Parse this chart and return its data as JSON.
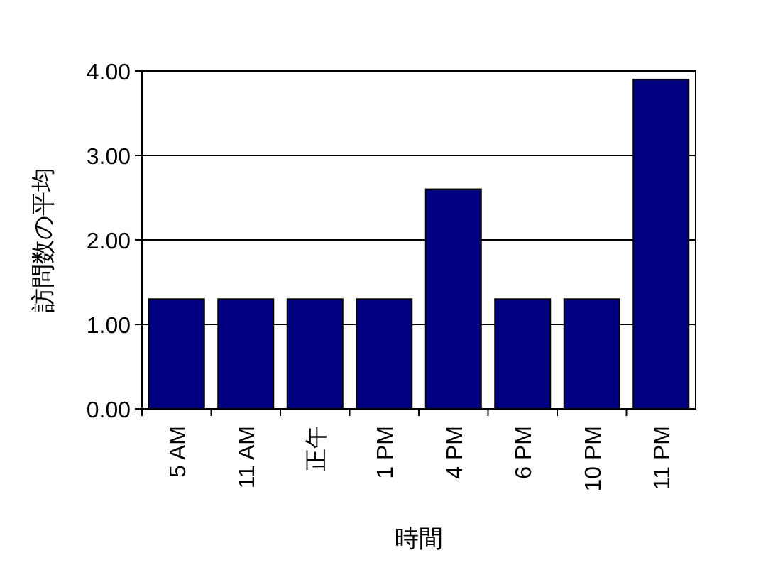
{
  "chart_data": {
    "type": "bar",
    "xlabel": "時間",
    "ylabel": "訪問数の平均",
    "categories": [
      "5 AM",
      "11 AM",
      "正午",
      "1 PM",
      "4 PM",
      "6 PM",
      "10 PM",
      "11 PM"
    ],
    "values": [
      1.3,
      1.3,
      1.3,
      1.3,
      2.6,
      1.3,
      1.3,
      3.9
    ],
    "color": "#000080",
    "ylim": [
      0,
      4
    ],
    "yticks": [
      {
        "value": 0,
        "label": "0.00"
      },
      {
        "value": 1,
        "label": "1.00"
      },
      {
        "value": 2,
        "label": "2.00"
      },
      {
        "value": 3,
        "label": "3.00"
      },
      {
        "value": 4,
        "label": "4.00"
      }
    ],
    "grid": "y"
  }
}
